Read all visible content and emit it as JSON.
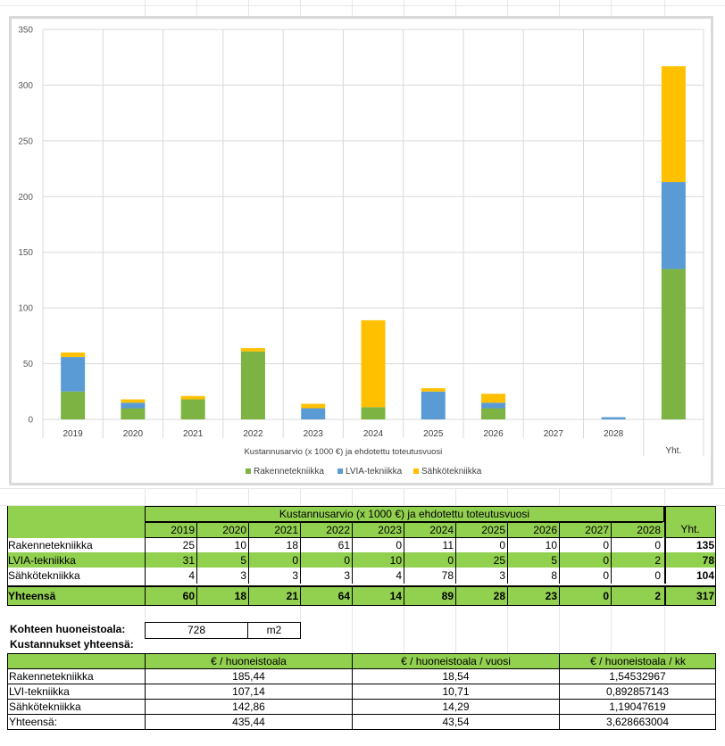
{
  "colors": {
    "rakenne": "#7cb342",
    "lvia": "#5b9bd5",
    "sahko": "#ffc000",
    "sheet_green": "#92d050"
  },
  "chart_data": {
    "type": "bar",
    "stacked": true,
    "categories": [
      "2019",
      "2020",
      "2021",
      "2022",
      "2023",
      "2024",
      "2025",
      "2026",
      "2027",
      "2028",
      "Yht."
    ],
    "series": [
      {
        "name": "Rakennetekniikka",
        "color": "#7cb342",
        "values": [
          25,
          10,
          18,
          61,
          0,
          11,
          0,
          10,
          0,
          0,
          135
        ]
      },
      {
        "name": "LVIA-tekniikka",
        "color": "#5b9bd5",
        "values": [
          31,
          5,
          0,
          0,
          10,
          0,
          25,
          5,
          0,
          2,
          78
        ]
      },
      {
        "name": "Sähkötekniikka",
        "color": "#ffc000",
        "values": [
          4,
          3,
          3,
          3,
          4,
          78,
          3,
          8,
          0,
          0,
          104
        ]
      }
    ],
    "yticks": [
      0,
      50,
      100,
      150,
      200,
      250,
      300,
      350
    ],
    "ylim": [
      0,
      350
    ],
    "xlabel": "Kustannusarvio (x 1000 €) ja ehdotettu toteutusvuosi",
    "ylabel": "",
    "legend_position": "bottom",
    "grid": true
  },
  "table": {
    "header_title": "Kustannusarvio (x 1000 €) ja ehdotettu toteutusvuosi",
    "years": [
      "2019",
      "2020",
      "2021",
      "2022",
      "2023",
      "2024",
      "2025",
      "2026",
      "2027",
      "2028"
    ],
    "total_label": "Yht.",
    "rows": [
      {
        "label": "Rakennetekniikka",
        "values": [
          "25",
          "10",
          "18",
          "61",
          "0",
          "11",
          "0",
          "10",
          "0",
          "0"
        ],
        "total": "135"
      },
      {
        "label": "LVIA-tekniikka",
        "values": [
          "31",
          "5",
          "0",
          "0",
          "10",
          "0",
          "25",
          "5",
          "0",
          "2"
        ],
        "total": "78"
      },
      {
        "label": "Sähkötekniikka",
        "values": [
          "4",
          "3",
          "3",
          "3",
          "4",
          "78",
          "3",
          "8",
          "0",
          "0"
        ],
        "total": "104"
      }
    ],
    "sum_row": {
      "label": "Yhteensä",
      "values": [
        "60",
        "18",
        "21",
        "64",
        "14",
        "89",
        "28",
        "23",
        "0",
        "2"
      ],
      "total": "317"
    }
  },
  "area": {
    "label": "Kohteen huoneistoala:",
    "value": "728",
    "unit": "m2"
  },
  "costs": {
    "title": "Kustannukset yhteensä:",
    "headers": [
      "€ / huoneistoala",
      "€ / huoneistoala / vuosi",
      "€ / huoneistoala / kk"
    ],
    "rows": [
      {
        "label": "Rakennetekniikka",
        "values": [
          "185,44",
          "18,54",
          "1,54532967"
        ]
      },
      {
        "label": "LVI-tekniikka",
        "values": [
          "107,14",
          "10,71",
          "0,892857143"
        ]
      },
      {
        "label": "Sähkötekniikka",
        "values": [
          "142,86",
          "14,29",
          "1,19047619"
        ]
      },
      {
        "label": "Yhteensä:",
        "values": [
          "435,44",
          "43,54",
          "3,628663004"
        ]
      }
    ]
  }
}
